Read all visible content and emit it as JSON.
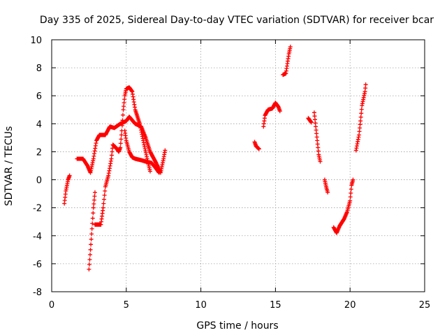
{
  "chart_data": {
    "type": "scatter",
    "title": "Day 335 of 2025, Sidereal Day-to-day VTEC variation (SDTVAR) for receiver bcar",
    "xlabel": "GPS time / hours",
    "ylabel": "SDTVAR / TECUs",
    "xlim": [
      0,
      25
    ],
    "ylim": [
      -8,
      10
    ],
    "xticks": [
      0,
      5,
      10,
      15,
      20,
      25
    ],
    "yticks": [
      -8,
      -6,
      -4,
      -2,
      0,
      2,
      4,
      6,
      8,
      10
    ],
    "xtick_labels": [
      "0",
      "5",
      "10",
      "15",
      "20",
      "25"
    ],
    "ytick_labels": [
      "-8",
      "-6",
      "-4",
      "-2",
      "0",
      "2",
      "4",
      "6",
      "8",
      "10"
    ],
    "grid": true,
    "marker": "+",
    "color": "#ff0000",
    "segments": [
      {
        "name": "seg-a",
        "points": [
          [
            0.85,
            -1.7
          ],
          [
            0.95,
            -0.8
          ],
          [
            1.1,
            0.0
          ],
          [
            1.2,
            0.3
          ]
        ]
      },
      {
        "name": "seg-b",
        "points": [
          [
            1.7,
            1.5
          ],
          [
            2.1,
            1.5
          ],
          [
            2.4,
            1.0
          ],
          [
            2.6,
            0.5
          ],
          [
            2.8,
            1.5
          ],
          [
            3.0,
            2.8
          ],
          [
            3.2,
            3.2
          ],
          [
            3.6,
            3.2
          ],
          [
            3.9,
            3.8
          ],
          [
            4.2,
            3.7
          ],
          [
            4.6,
            4.0
          ],
          [
            5.0,
            4.2
          ],
          [
            5.2,
            4.5
          ],
          [
            5.6,
            4.0
          ],
          [
            6.0,
            3.8
          ],
          [
            6.3,
            3.0
          ],
          [
            6.6,
            2.0
          ],
          [
            7.0,
            1.2
          ],
          [
            7.3,
            0.5
          ],
          [
            7.5,
            1.5
          ],
          [
            7.6,
            2.1
          ]
        ]
      },
      {
        "name": "seg-c",
        "points": [
          [
            2.5,
            -6.4
          ],
          [
            2.6,
            -5.0
          ],
          [
            2.7,
            -3.5
          ],
          [
            2.8,
            -2.0
          ],
          [
            2.9,
            -0.9
          ]
        ]
      },
      {
        "name": "seg-d",
        "points": [
          [
            2.9,
            -3.2
          ],
          [
            3.3,
            -3.2
          ],
          [
            3.45,
            -2.0
          ],
          [
            3.6,
            -0.5
          ],
          [
            3.8,
            0.3
          ],
          [
            4.0,
            1.5
          ],
          [
            4.1,
            2.5
          ],
          [
            4.3,
            2.3
          ],
          [
            4.5,
            2.0
          ],
          [
            4.6,
            2.3
          ],
          [
            4.7,
            3.5
          ],
          [
            4.8,
            5.0
          ],
          [
            4.9,
            6.0
          ],
          [
            5.0,
            6.5
          ],
          [
            5.2,
            6.6
          ],
          [
            5.4,
            6.3
          ],
          [
            5.6,
            5.0
          ],
          [
            5.9,
            4.0
          ],
          [
            6.2,
            2.5
          ],
          [
            6.4,
            1.5
          ],
          [
            6.6,
            0.6
          ]
        ]
      },
      {
        "name": "seg-e",
        "points": [
          [
            4.9,
            3.5
          ],
          [
            5.0,
            2.8
          ],
          [
            5.2,
            2.0
          ],
          [
            5.4,
            1.6
          ],
          [
            5.6,
            1.5
          ],
          [
            6.0,
            1.4
          ],
          [
            6.3,
            1.3
          ],
          [
            6.7,
            1.2
          ],
          [
            7.0,
            0.8
          ],
          [
            7.2,
            0.5
          ]
        ]
      },
      {
        "name": "seg-f",
        "points": [
          [
            13.6,
            2.7
          ],
          [
            13.7,
            2.4
          ],
          [
            13.9,
            2.2
          ]
        ]
      },
      {
        "name": "seg-g",
        "points": [
          [
            14.2,
            3.8
          ],
          [
            14.3,
            4.6
          ],
          [
            14.5,
            5.0
          ],
          [
            14.8,
            5.1
          ],
          [
            15.0,
            5.5
          ],
          [
            15.2,
            5.2
          ],
          [
            15.3,
            4.9
          ]
        ]
      },
      {
        "name": "seg-h",
        "points": [
          [
            15.5,
            7.5
          ],
          [
            15.7,
            7.6
          ],
          [
            15.8,
            8.3
          ],
          [
            15.9,
            9.0
          ],
          [
            16.0,
            9.5
          ]
        ]
      },
      {
        "name": "seg-i",
        "points": [
          [
            17.2,
            4.4
          ],
          [
            17.4,
            4.1
          ]
        ]
      },
      {
        "name": "seg-j",
        "points": [
          [
            17.6,
            4.8
          ],
          [
            17.7,
            3.8
          ],
          [
            17.8,
            2.8
          ],
          [
            17.9,
            1.8
          ],
          [
            18.0,
            1.3
          ]
        ]
      },
      {
        "name": "seg-k",
        "points": [
          [
            18.3,
            0.0
          ],
          [
            18.4,
            -0.5
          ],
          [
            18.5,
            -0.9
          ]
        ]
      },
      {
        "name": "seg-l",
        "points": [
          [
            18.9,
            -3.4
          ],
          [
            19.1,
            -3.8
          ],
          [
            19.3,
            -3.3
          ],
          [
            19.6,
            -2.8
          ],
          [
            19.8,
            -2.3
          ],
          [
            20.0,
            -1.5
          ],
          [
            20.1,
            -0.4
          ],
          [
            20.2,
            0.0
          ]
        ]
      },
      {
        "name": "seg-m",
        "points": [
          [
            20.4,
            2.1
          ],
          [
            20.6,
            3.2
          ],
          [
            20.7,
            4.2
          ],
          [
            20.8,
            5.3
          ],
          [
            21.0,
            6.3
          ],
          [
            21.05,
            6.8
          ]
        ]
      }
    ]
  }
}
